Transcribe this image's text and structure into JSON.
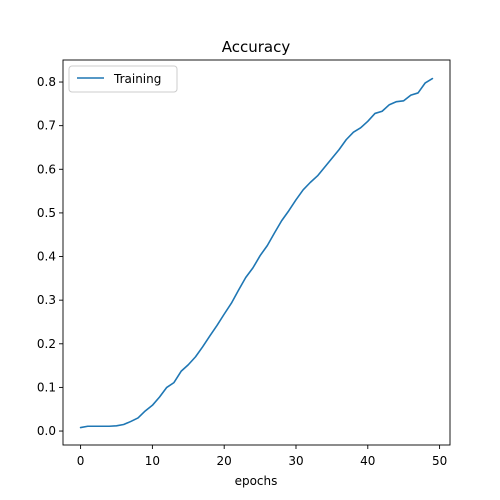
{
  "chart_data": {
    "type": "line",
    "title": "Accuracy",
    "xlabel": "epochs",
    "ylabel": "",
    "xlim": [
      -2.45,
      51.45
    ],
    "ylim": [
      -0.032,
      0.8505
    ],
    "xticks": [
      0,
      10,
      20,
      30,
      40,
      50
    ],
    "yticks": [
      0.0,
      0.1,
      0.2,
      0.3,
      0.4,
      0.5,
      0.6,
      0.7,
      0.8
    ],
    "xtick_labels": [
      "0",
      "10",
      "20",
      "30",
      "40",
      "50"
    ],
    "ytick_labels": [
      "0.0",
      "0.1",
      "0.2",
      "0.3",
      "0.4",
      "0.5",
      "0.6",
      "0.7",
      "0.8"
    ],
    "grid": false,
    "legend_position": "upper-left",
    "series": [
      {
        "name": "Training",
        "color": "#1f77b4",
        "x": [
          0,
          1,
          2,
          3,
          4,
          5,
          6,
          7,
          8,
          9,
          10,
          11,
          12,
          13,
          14,
          15,
          16,
          17,
          18,
          19,
          20,
          21,
          22,
          23,
          24,
          25,
          26,
          27,
          28,
          29,
          30,
          31,
          32,
          33,
          34,
          35,
          36,
          37,
          38,
          39,
          40,
          41,
          42,
          43,
          44,
          45,
          46,
          47,
          48,
          49
        ],
        "values": [
          0.008,
          0.011,
          0.011,
          0.011,
          0.011,
          0.012,
          0.015,
          0.022,
          0.03,
          0.046,
          0.059,
          0.078,
          0.1,
          0.111,
          0.137,
          0.152,
          0.17,
          0.193,
          0.218,
          0.242,
          0.268,
          0.293,
          0.323,
          0.352,
          0.374,
          0.402,
          0.425,
          0.454,
          0.482,
          0.505,
          0.53,
          0.553,
          0.57,
          0.585,
          0.605,
          0.625,
          0.645,
          0.668,
          0.685,
          0.695,
          0.71,
          0.728,
          0.733,
          0.748,
          0.755,
          0.757,
          0.77,
          0.775,
          0.798,
          0.808
        ]
      }
    ]
  }
}
